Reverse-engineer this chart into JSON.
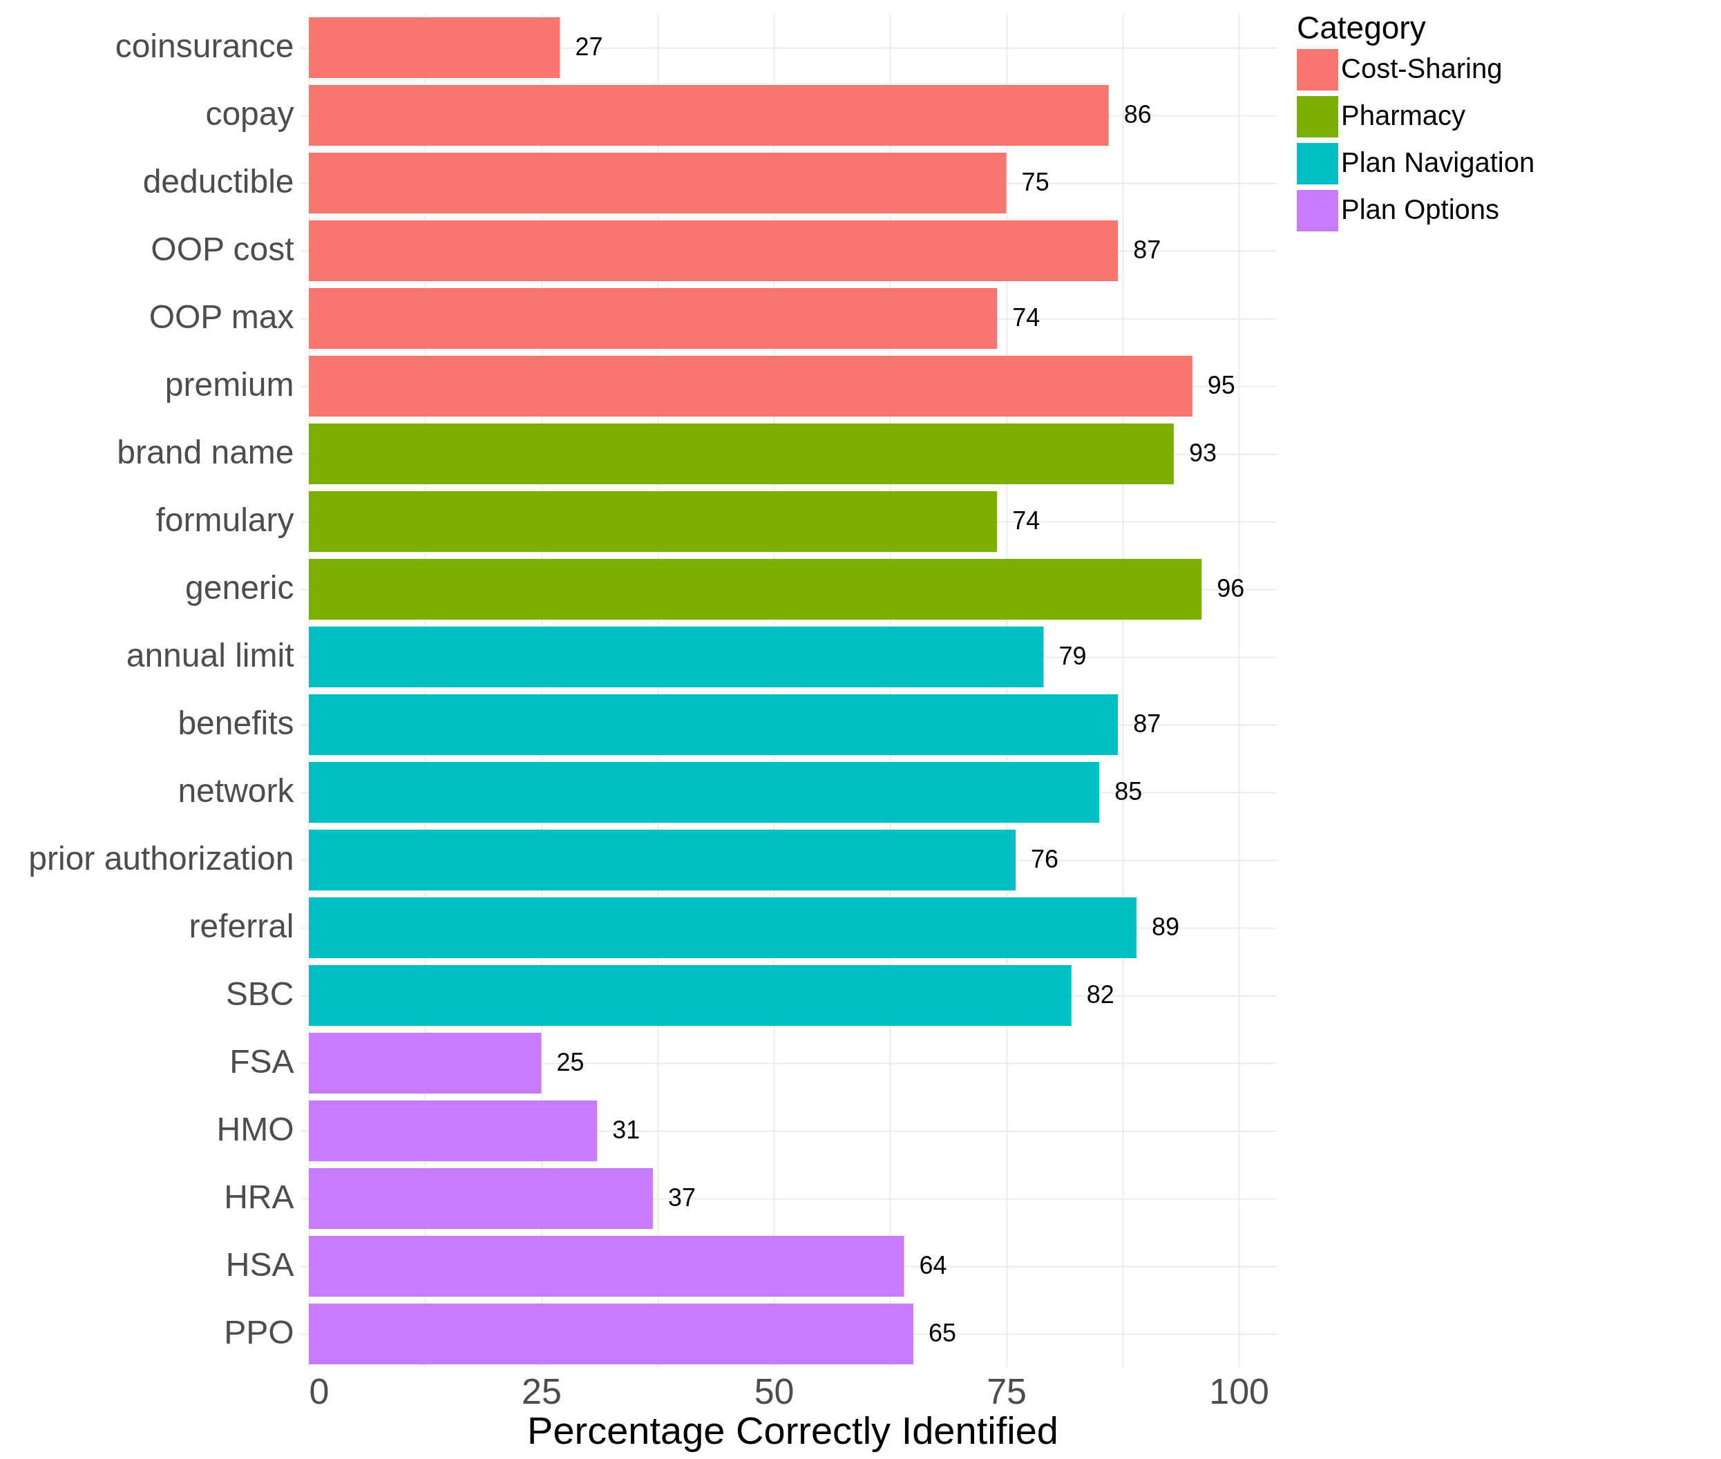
{
  "chart_data": {
    "type": "bar",
    "orientation": "horizontal",
    "xlabel": "Percentage Correctly Identified",
    "legend_title": "Category",
    "legend": "right",
    "grid": true,
    "data_labels": true,
    "categories": [
      "coinsurance",
      "copay",
      "deductible",
      "OOP cost",
      "OOP max",
      "premium",
      "brand name",
      "formulary",
      "generic",
      "annual limit",
      "benefits",
      "network",
      "prior authorization",
      "referral",
      "SBC",
      "FSA",
      "HMO",
      "HRA",
      "HSA",
      "PPO"
    ],
    "xlim": [
      0,
      104
    ],
    "xticks": [
      0,
      {
        "value": 12.5,
        "label": null
      },
      25,
      {
        "value": 37.5,
        "label": null
      },
      50,
      {
        "value": 62.5,
        "label": null
      },
      75,
      {
        "value": 87.5,
        "label": null
      },
      100
    ],
    "series": [
      {
        "name": "Cost-Sharing",
        "color": "#f8766d",
        "values": [
          27,
          86,
          75,
          87,
          74,
          95,
          null,
          null,
          null,
          null,
          null,
          null,
          null,
          null,
          null,
          null,
          null,
          null,
          null,
          null
        ]
      },
      {
        "name": "Pharmacy",
        "color": "#7cae00",
        "values": [
          null,
          null,
          null,
          null,
          null,
          null,
          93,
          74,
          96,
          null,
          null,
          null,
          null,
          null,
          null,
          null,
          null,
          null,
          null,
          null
        ]
      },
      {
        "name": "Plan Navigation",
        "color": "#00bfc4",
        "values": [
          null,
          null,
          null,
          null,
          null,
          null,
          null,
          null,
          null,
          79,
          87,
          85,
          76,
          89,
          82,
          null,
          null,
          null,
          null,
          null
        ]
      },
      {
        "name": "Plan Options",
        "color": "#c77cff",
        "values": [
          null,
          null,
          null,
          null,
          null,
          null,
          null,
          null,
          null,
          null,
          null,
          null,
          null,
          null,
          null,
          25,
          31,
          37,
          64,
          65
        ]
      }
    ]
  }
}
